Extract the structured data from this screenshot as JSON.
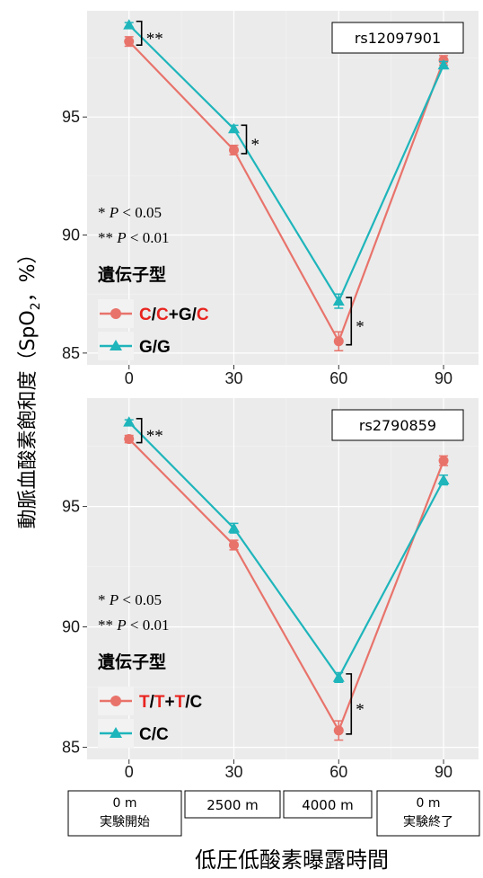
{
  "chart_data": [
    {
      "type": "line",
      "snp": "rs12097901",
      "x": [
        0,
        30,
        60,
        90
      ],
      "xticks": [
        "0",
        "30",
        "60",
        "90"
      ],
      "yticks": [
        "85",
        "90",
        "95"
      ],
      "ylim": [
        84.5,
        99.5
      ],
      "xlim": [
        -12,
        100
      ],
      "series": [
        {
          "name_parts": [
            {
              "t": "C",
              "risk": true
            },
            {
              "t": "/",
              "risk": false
            },
            {
              "t": "C",
              "risk": true
            },
            {
              "t": "+G/",
              "risk": false
            },
            {
              "t": "C",
              "risk": true
            }
          ],
          "values": [
            98.2,
            93.6,
            85.5,
            97.4
          ],
          "errors": [
            0.2,
            0.2,
            0.4,
            0.2
          ],
          "color": "#e8736b",
          "marker": "circle"
        },
        {
          "name_parts": [
            {
              "t": "G/G",
              "risk": false
            }
          ],
          "values": [
            98.9,
            94.5,
            87.2,
            97.2
          ],
          "errors": [
            0.1,
            0.15,
            0.3,
            0.15
          ],
          "color": "#1eb5bb",
          "marker": "triangle"
        }
      ],
      "significance": [
        {
          "x": 0,
          "label": "**"
        },
        {
          "x": 30,
          "label": "*"
        },
        {
          "x": 60,
          "label": "*"
        }
      ],
      "notes": [
        "* P < 0.05",
        "** P < 0.01"
      ],
      "legend_title": "遺伝子型"
    },
    {
      "type": "line",
      "snp": "rs2790859",
      "x": [
        0,
        30,
        60,
        90
      ],
      "xticks": [
        "0",
        "30",
        "60",
        "90"
      ],
      "yticks": [
        "85",
        "90",
        "95"
      ],
      "ylim": [
        84.5,
        99.5
      ],
      "xlim": [
        -12,
        100
      ],
      "series": [
        {
          "name_parts": [
            {
              "t": "T",
              "risk": true
            },
            {
              "t": "/",
              "risk": false
            },
            {
              "t": "T",
              "risk": true
            },
            {
              "t": "+",
              "risk": false
            },
            {
              "t": "T",
              "risk": true
            },
            {
              "t": "/C",
              "risk": false
            }
          ],
          "values": [
            97.8,
            93.4,
            85.7,
            96.9
          ],
          "errors": [
            0.15,
            0.2,
            0.4,
            0.2
          ],
          "color": "#e8736b",
          "marker": "circle"
        },
        {
          "name_parts": [
            {
              "t": "C/C",
              "risk": false
            }
          ],
          "values": [
            98.5,
            94.1,
            87.9,
            96.1
          ],
          "errors": [
            0.1,
            0.2,
            0.2,
            0.2
          ],
          "color": "#1eb5bb",
          "marker": "triangle"
        }
      ],
      "significance": [
        {
          "x": 0,
          "label": "**"
        },
        {
          "x": 60,
          "label": "*"
        }
      ],
      "notes": [
        "* P < 0.05",
        "** P < 0.01"
      ],
      "legend_title": "遺伝子型"
    }
  ],
  "ylabel": "動脈血酸素飽和度（SpO",
  "ylabel_sub": "2",
  "ylabel_tail": "，%）",
  "xlabel": "低圧低酸素曝露時間",
  "condition_boxes": [
    {
      "lines": [
        "0 m",
        "実験開始"
      ]
    },
    {
      "lines": [
        "2500 m"
      ]
    },
    {
      "lines": [
        "4000 m"
      ]
    },
    {
      "lines": [
        "0 m",
        "実験終了"
      ]
    }
  ],
  "colors": {
    "risk_text": "#e8231e",
    "series1": "#e8736b",
    "series2": "#1eb5bb"
  }
}
